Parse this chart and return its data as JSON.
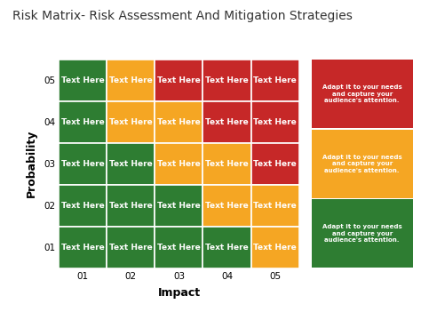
{
  "title": "Risk Matrix- Risk Assessment And Mitigation Strategies",
  "xlabel": "Impact",
  "ylabel": "Probability",
  "x_ticks": [
    "01",
    "02",
    "03",
    "04",
    "05"
  ],
  "y_ticks": [
    "01",
    "02",
    "03",
    "04",
    "05"
  ],
  "cell_text": "Text Here",
  "cell_colors": [
    [
      "#2e7d32",
      "#f5a623",
      "#c62828",
      "#c62828",
      "#c62828"
    ],
    [
      "#2e7d32",
      "#f5a623",
      "#f5a623",
      "#c62828",
      "#c62828"
    ],
    [
      "#2e7d32",
      "#2e7d32",
      "#f5a623",
      "#f5a623",
      "#c62828"
    ],
    [
      "#2e7d32",
      "#2e7d32",
      "#2e7d32",
      "#f5a623",
      "#f5a623"
    ],
    [
      "#2e7d32",
      "#2e7d32",
      "#2e7d32",
      "#2e7d32",
      "#f5a623"
    ]
  ],
  "legend_boxes": [
    {
      "color": "#c62828",
      "text": "Adapt it to your needs\nand capture your\naudience's attention."
    },
    {
      "color": "#f5a623",
      "text": "Adapt it to your needs\nand capture your\naudience's attention."
    },
    {
      "color": "#2e7d32",
      "text": "Adapt it to your needs\nand capture your\naudience's attention."
    }
  ],
  "background_color": "#ffffff",
  "title_fontsize": 10,
  "cell_fontsize": 6.5,
  "legend_fontsize": 5.0,
  "tick_fontsize": 7.5,
  "axis_label_fontsize": 9
}
